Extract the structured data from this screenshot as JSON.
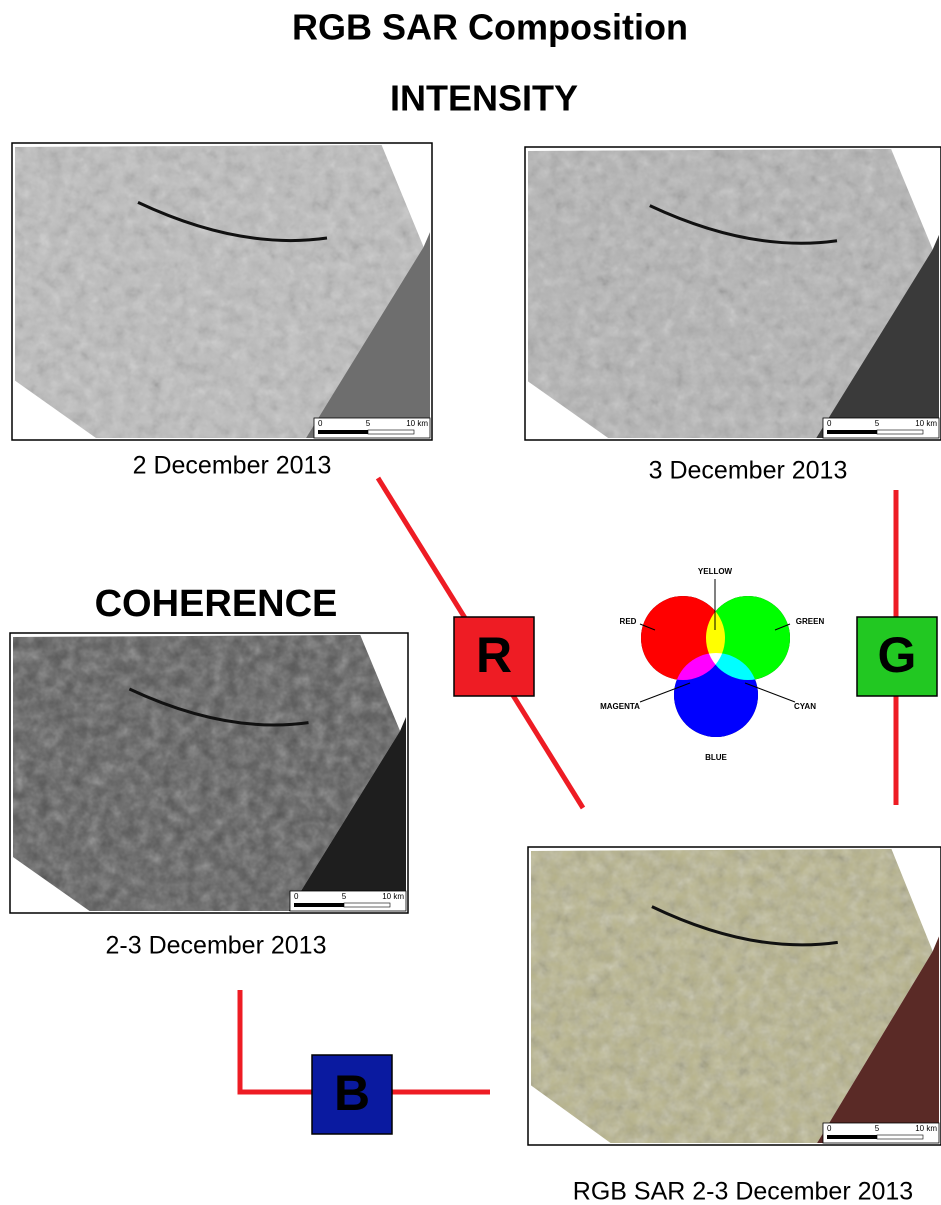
{
  "title": "RGB SAR Composition",
  "intensity_heading": "INTENSITY",
  "coherence_heading": "COHERENCE",
  "images": [
    {
      "caption": "2 December 2013",
      "scale": [
        "0",
        "5",
        "10 km"
      ]
    },
    {
      "caption": "3 December 2013",
      "scale": [
        "0",
        "5",
        "10 km"
      ]
    },
    {
      "caption": "2-3 December 2013",
      "scale": [
        "0",
        "5",
        "10 km"
      ]
    },
    {
      "caption": "RGB SAR 2-3 December 2013",
      "scale": [
        "0",
        "5",
        "10 km"
      ]
    }
  ],
  "channels": [
    "R",
    "G",
    "B"
  ],
  "color_wheel": {
    "labels": [
      "YELLOW",
      "RED",
      "GREEN",
      "MAGENTA",
      "CYAN",
      "BLUE"
    ]
  }
}
